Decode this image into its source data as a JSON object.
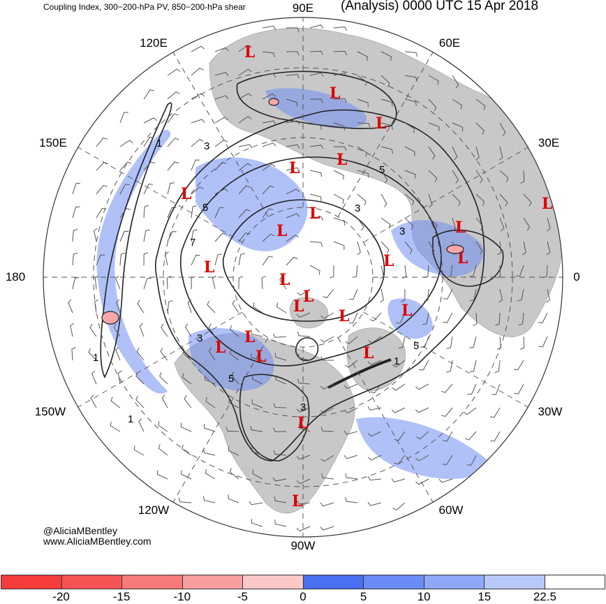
{
  "header": {
    "subtitle": "Coupling Index, 300−200-hPa PV, 850−200-hPa shear",
    "title": "(Analysis) 0000 UTC 15 Apr 2018"
  },
  "credits": {
    "handle": "@AliciaMBentley",
    "website": "www.AliciaMBentley.com"
  },
  "longitude_labels": [
    "90E",
    "60E",
    "30E",
    "0",
    "30W",
    "60W",
    "90W",
    "120W",
    "150W",
    "180",
    "150E",
    "120E"
  ],
  "contour_labels": [
    "3",
    "5",
    "1",
    "7",
    "3",
    "5",
    "1",
    "3",
    "5",
    "1",
    "3",
    "5",
    "3",
    "1"
  ],
  "low_marker_text": "L",
  "low_count": 30,
  "colorbar": {
    "colors": [
      "#f53c3c",
      "#f55454",
      "#f77a7a",
      "#fa9f9f",
      "#fcc7c7",
      "#4a6ff0",
      "#6a8cf5",
      "#8fa8f7",
      "#b8c8fa",
      "#ffffff"
    ],
    "tick_labels": [
      "-20",
      "-15",
      "-10",
      "-5",
      "0",
      "5",
      "10",
      "15",
      "22.5"
    ]
  },
  "colors": {
    "land": "#c8c8c8",
    "ocean": "#ffffff",
    "shading_blue": "#6f8ef2",
    "contour": "#222222",
    "low": "#e00000"
  }
}
